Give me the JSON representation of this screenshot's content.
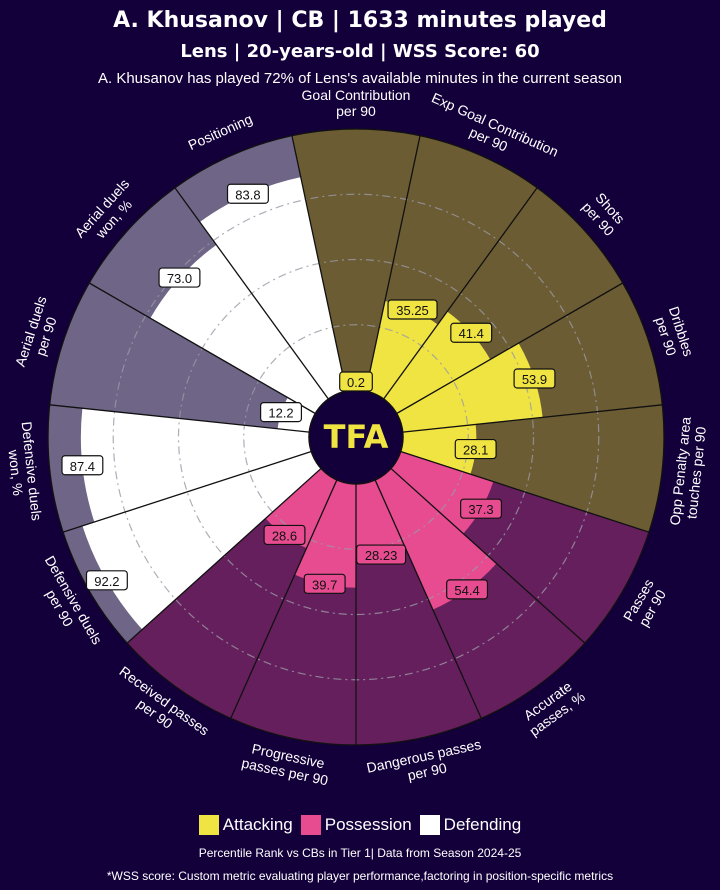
{
  "header": {
    "title": "A. Khusanov | CB | 1633 minutes played",
    "subtitle": "Lens | 20-years-old | WSS Score: 60",
    "note": "A. Khusanov has played 72% of Lens's available minutes in the current season"
  },
  "footer": {
    "line1": "Percentile Rank vs CBs in Tier 1| Data from Season 2024-25",
    "line2": "*WSS score: Custom metric evaluating player performance,factoring in position-specific metrics"
  },
  "logo_text": "TFA",
  "colors": {
    "background": "#13003a",
    "attacking_fill": "#f0e442",
    "attacking_bg": "#6b5c33",
    "possession_fill": "#e64c8f",
    "possession_bg": "#651f5c",
    "defending_fill": "#ffffff",
    "defending_bg": "#6f6586"
  },
  "chart_data": {
    "type": "pizza",
    "rlim": [
      0,
      100
    ],
    "legend": [
      {
        "name": "Attacking",
        "group": "attacking"
      },
      {
        "name": "Possession",
        "group": "possession"
      },
      {
        "name": "Defending",
        "group": "defending"
      }
    ],
    "legend_placement": "bottom",
    "metrics": [
      {
        "label": "Goal Contribution\nper 90",
        "value": 0.2,
        "group": "attacking"
      },
      {
        "label": "Exp Goal Contribution\nper 90",
        "value": 35.25,
        "group": "attacking"
      },
      {
        "label": "Shots\nper 90",
        "value": 41.4,
        "group": "attacking"
      },
      {
        "label": "Dribbles\nper 90",
        "value": 53.9,
        "group": "attacking"
      },
      {
        "label": "Opp Penalty area\ntouches per 90",
        "value": 28.1,
        "group": "attacking"
      },
      {
        "label": "Passes\nper 90",
        "value": 37.3,
        "group": "possession"
      },
      {
        "label": "Accurate\npasses, %",
        "value": 54.4,
        "group": "possession"
      },
      {
        "label": "Dangerous passes\nper 90",
        "value": 28.23,
        "group": "possession"
      },
      {
        "label": "Progressive\npasses per 90",
        "value": 39.7,
        "group": "possession"
      },
      {
        "label": "Received passes\nper 90",
        "value": 28.6,
        "group": "possession"
      },
      {
        "label": "Defensive duels\nper 90",
        "value": 92.2,
        "group": "defending"
      },
      {
        "label": "Defensive duels\nwon, %",
        "value": 87.4,
        "group": "defending"
      },
      {
        "label": "Aerial duels\nper 90",
        "value": 12.2,
        "group": "defending"
      },
      {
        "label": "Aerial duels\nwon, %",
        "value": 73.0,
        "group": "defending"
      },
      {
        "label": "Positioning",
        "value": 83.8,
        "group": "defending"
      }
    ]
  }
}
